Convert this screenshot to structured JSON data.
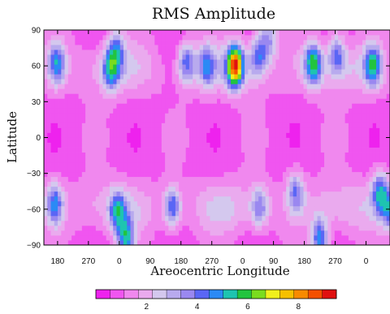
{
  "chart_data": {
    "type": "heatmap",
    "title": "RMS Amplitude",
    "xlabel": "Areocentric Longitude",
    "ylabel": "Latitude",
    "x_tick_labels": [
      "180",
      "270",
      "0",
      "90",
      "180",
      "270",
      "0",
      "90",
      "180",
      "270",
      "0"
    ],
    "x_ticks": [
      180,
      270,
      360,
      450,
      540,
      630,
      720,
      810,
      900,
      990,
      1080
    ],
    "xlim": [
      140,
      1150
    ],
    "y_ticks": [
      90,
      60,
      30,
      0,
      -30,
      -60,
      -90
    ],
    "y_tick_labels": [
      "90",
      "60",
      "30",
      "0",
      "−30",
      "−60",
      "−90"
    ],
    "ylim": [
      -90,
      90
    ],
    "colorbar": {
      "tick_labels": [
        "2",
        "4",
        "6",
        "8"
      ],
      "ticks": [
        2,
        4,
        6,
        8
      ],
      "range": [
        0,
        9.5
      ],
      "colors": [
        "#ee22ee",
        "#f055f0",
        "#f088ee",
        "#eaaaee",
        "#d4c8ee",
        "#b8aaee",
        "#9a88f0",
        "#5a66f5",
        "#2b8af5",
        "#1ec4b0",
        "#22c43f",
        "#7adc1e",
        "#f0f01c",
        "#f6c000",
        "#f88a00",
        "#f45000",
        "#e01010"
      ]
    },
    "hotspots": [
      {
        "lon": 178,
        "lat": 62,
        "value": 4.6
      },
      {
        "lon": 335,
        "lat": 57,
        "value": 4.5
      },
      {
        "lon": 352,
        "lat": 74,
        "value": 3.8
      },
      {
        "lon": 556,
        "lat": 63,
        "value": 4.2
      },
      {
        "lon": 615,
        "lat": 60,
        "value": 3.8
      },
      {
        "lon": 698,
        "lat": 60,
        "value": 8.3
      },
      {
        "lon": 765,
        "lat": 68,
        "value": 4.1
      },
      {
        "lon": 795,
        "lat": 82,
        "value": 3.6
      },
      {
        "lon": 926,
        "lat": 62,
        "value": 5.6
      },
      {
        "lon": 995,
        "lat": 70,
        "value": 3.8
      },
      {
        "lon": 1100,
        "lat": 60,
        "value": 5.0
      },
      {
        "lon": 172,
        "lat": -55,
        "value": 4.4
      },
      {
        "lon": 355,
        "lat": -62,
        "value": 4.3
      },
      {
        "lon": 380,
        "lat": -85,
        "value": 5.0
      },
      {
        "lon": 515,
        "lat": -58,
        "value": 4.6
      },
      {
        "lon": 770,
        "lat": -58,
        "value": 3.6
      },
      {
        "lon": 875,
        "lat": -45,
        "value": 3.8
      },
      {
        "lon": 945,
        "lat": -85,
        "value": 4.8
      },
      {
        "lon": 1120,
        "lat": -45,
        "value": 4.6
      },
      {
        "lon": 1148,
        "lat": -60,
        "value": 4.1
      }
    ]
  }
}
